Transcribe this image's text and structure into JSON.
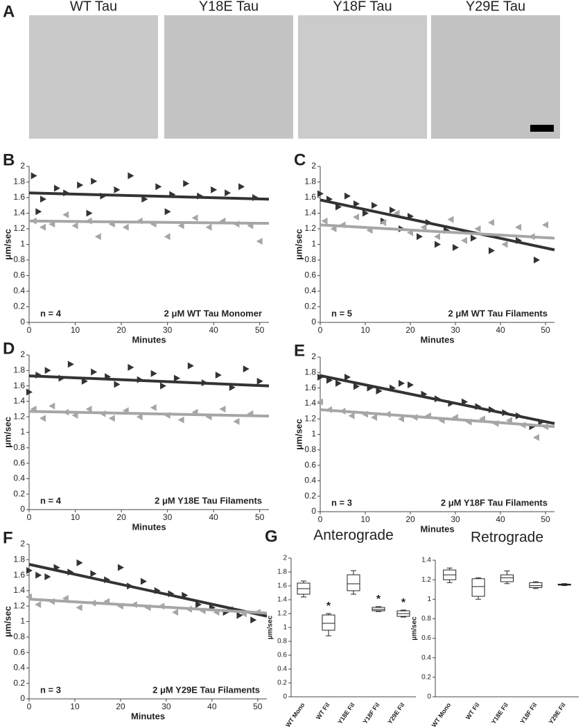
{
  "figure": {
    "panel_label": "A",
    "images": [
      "WT Tau",
      "Y18E Tau",
      "Y18F Tau",
      "Y29E Tau"
    ]
  },
  "chart_data": [
    {
      "type": "scatter",
      "panel_label": "B",
      "ylabel": "μm/sec",
      "xlabel": "Minutes",
      "annotation_left": "n = 4",
      "annotation_right": "2 μM WT Tau Monomer",
      "xlim": [
        0,
        52
      ],
      "xticks": [
        0,
        10,
        20,
        30,
        40,
        50
      ],
      "ylim": [
        0,
        2
      ],
      "yticks": [
        0,
        0.2,
        0.4,
        0.6,
        0.8,
        1,
        1.2,
        1.4,
        1.6,
        1.8,
        2
      ],
      "series": [
        {
          "color": "#333333",
          "marker": "right",
          "x": [
            1,
            2,
            3,
            6,
            8,
            11,
            13,
            14,
            16,
            19,
            22,
            25,
            28,
            30,
            31,
            34,
            37,
            40,
            43,
            46,
            49
          ],
          "values": [
            1.88,
            1.42,
            1.58,
            1.72,
            1.66,
            1.76,
            1.4,
            1.81,
            1.62,
            1.7,
            1.88,
            1.58,
            1.74,
            1.42,
            1.64,
            1.78,
            1.62,
            1.7,
            1.66,
            1.74,
            1.6
          ]
        },
        {
          "color": "#a6a6a6",
          "marker": "left",
          "x": [
            1,
            3,
            5,
            8,
            10,
            13,
            15,
            18,
            21,
            24,
            27,
            30,
            33,
            36,
            39,
            42,
            45,
            48,
            50
          ],
          "values": [
            1.3,
            1.22,
            1.26,
            1.38,
            1.24,
            1.3,
            1.1,
            1.26,
            1.22,
            1.3,
            1.26,
            1.1,
            1.24,
            1.34,
            1.22,
            1.3,
            1.26,
            1.24,
            1.04
          ]
        }
      ],
      "fits": [
        {
          "color": "#333333",
          "x": [
            0,
            52
          ],
          "values": [
            1.66,
            1.58
          ]
        },
        {
          "color": "#a6a6a6",
          "x": [
            0,
            52
          ],
          "values": [
            1.3,
            1.27
          ]
        }
      ]
    },
    {
      "type": "scatter",
      "panel_label": "C",
      "ylabel": "μm/sec",
      "xlabel": "Minutes",
      "annotation_left": "n = 5",
      "annotation_right": "2 μM WT Tau Filaments",
      "xlim": [
        0,
        52
      ],
      "xticks": [
        0,
        10,
        20,
        30,
        40,
        50
      ],
      "ylim": [
        0,
        2
      ],
      "yticks": [
        0,
        0.2,
        0.4,
        0.6,
        0.8,
        1,
        1.2,
        1.4,
        1.6,
        1.8,
        2
      ],
      "series": [
        {
          "color": "#333333",
          "marker": "right",
          "x": [
            0,
            2,
            4,
            6,
            8,
            10,
            12,
            14,
            16,
            18,
            20,
            22,
            24,
            26,
            28,
            30,
            34,
            38,
            44,
            48
          ],
          "values": [
            1.65,
            1.58,
            1.48,
            1.62,
            1.52,
            1.4,
            1.5,
            1.3,
            1.44,
            1.2,
            1.36,
            1.1,
            1.28,
            1.0,
            1.18,
            0.96,
            1.08,
            0.92,
            1.05,
            0.8
          ]
        },
        {
          "color": "#a6a6a6",
          "marker": "left",
          "x": [
            1,
            3,
            5,
            8,
            11,
            14,
            17,
            20,
            23,
            26,
            29,
            32,
            35,
            38,
            41,
            44,
            47,
            50
          ],
          "values": [
            1.3,
            1.2,
            1.25,
            1.35,
            1.18,
            1.28,
            1.4,
            1.15,
            1.22,
            1.1,
            1.32,
            1.05,
            1.2,
            1.28,
            1.0,
            1.22,
            1.1,
            1.25
          ]
        }
      ],
      "fits": [
        {
          "color": "#333333",
          "x": [
            0,
            52
          ],
          "values": [
            1.57,
            0.93
          ]
        },
        {
          "color": "#a6a6a6",
          "x": [
            0,
            52
          ],
          "values": [
            1.25,
            1.08
          ]
        }
      ]
    },
    {
      "type": "scatter",
      "panel_label": "D",
      "ylabel": "μm/sec",
      "xlabel": "Minutes",
      "annotation_left": "n = 4",
      "annotation_right": "2 μM Y18E Tau Filaments",
      "xlim": [
        0,
        52
      ],
      "xticks": [
        0,
        10,
        20,
        30,
        40,
        50
      ],
      "ylim": [
        0,
        2
      ],
      "yticks": [
        0,
        0.2,
        0.4,
        0.6,
        0.8,
        1,
        1.2,
        1.4,
        1.6,
        1.8,
        2
      ],
      "series": [
        {
          "color": "#333333",
          "marker": "right",
          "x": [
            0,
            2,
            4,
            7,
            9,
            12,
            14,
            17,
            19,
            22,
            24,
            27,
            29,
            32,
            35,
            38,
            41,
            44,
            47,
            50
          ],
          "values": [
            1.52,
            1.74,
            1.8,
            1.7,
            1.88,
            1.66,
            1.78,
            1.72,
            1.62,
            1.84,
            1.68,
            1.76,
            1.6,
            1.7,
            1.86,
            1.64,
            1.74,
            1.58,
            1.82,
            1.66
          ]
        },
        {
          "color": "#a6a6a6",
          "marker": "left",
          "x": [
            1,
            3,
            5,
            8,
            10,
            13,
            16,
            18,
            21,
            24,
            27,
            30,
            33,
            36,
            39,
            42,
            45,
            48
          ],
          "values": [
            1.3,
            1.18,
            1.34,
            1.26,
            1.22,
            1.3,
            1.24,
            1.18,
            1.28,
            1.2,
            1.32,
            1.22,
            1.16,
            1.26,
            1.2,
            1.3,
            1.14,
            1.24
          ]
        }
      ],
      "fits": [
        {
          "color": "#333333",
          "x": [
            0,
            52
          ],
          "values": [
            1.73,
            1.6
          ]
        },
        {
          "color": "#a6a6a6",
          "x": [
            0,
            52
          ],
          "values": [
            1.27,
            1.21
          ]
        }
      ]
    },
    {
      "type": "scatter",
      "panel_label": "E",
      "ylabel": "μm/sec",
      "xlabel": "Minutes",
      "annotation_left": "n = 3",
      "annotation_right": "2 μM Y18F Tau Filaments",
      "xlim": [
        0,
        52
      ],
      "xticks": [
        0,
        10,
        20,
        30,
        40,
        50
      ],
      "ylim": [
        0,
        2
      ],
      "yticks": [
        0,
        0.2,
        0.4,
        0.6,
        0.8,
        1,
        1.2,
        1.4,
        1.6,
        1.8,
        2
      ],
      "series": [
        {
          "color": "#333333",
          "marker": "right",
          "x": [
            0,
            2,
            4,
            6,
            8,
            11,
            13,
            16,
            18,
            20,
            23,
            26,
            29,
            32,
            35,
            38,
            41,
            44,
            47,
            49
          ],
          "values": [
            1.74,
            1.7,
            1.66,
            1.74,
            1.62,
            1.6,
            1.56,
            1.6,
            1.66,
            1.64,
            1.52,
            1.46,
            1.4,
            1.42,
            1.36,
            1.32,
            1.28,
            1.24,
            1.1,
            1.16
          ]
        },
        {
          "color": "#a6a6a6",
          "marker": "left",
          "x": [
            0,
            2,
            5,
            7,
            10,
            12,
            15,
            18,
            21,
            24,
            27,
            30,
            33,
            36,
            39,
            42,
            45,
            48,
            50
          ],
          "values": [
            1.42,
            1.32,
            1.3,
            1.24,
            1.26,
            1.22,
            1.26,
            1.2,
            1.22,
            1.24,
            1.18,
            1.22,
            1.16,
            1.2,
            1.14,
            1.18,
            1.12,
            0.96,
            1.1
          ]
        }
      ],
      "fits": [
        {
          "color": "#333333",
          "x": [
            0,
            52
          ],
          "values": [
            1.76,
            1.14
          ]
        },
        {
          "color": "#a6a6a6",
          "x": [
            0,
            52
          ],
          "values": [
            1.32,
            1.1
          ]
        }
      ]
    },
    {
      "type": "scatter",
      "panel_label": "F",
      "ylabel": "μm/sec",
      "xlabel": "Minutes",
      "annotation_left": "n = 3",
      "annotation_right": "2 μM Y29E Tau Filaments",
      "xlim": [
        0,
        52
      ],
      "xticks": [
        0,
        10,
        20,
        30,
        40,
        50
      ],
      "ylim": [
        0,
        2
      ],
      "yticks": [
        0,
        0.2,
        0.4,
        0.6,
        0.8,
        1,
        1.2,
        1.4,
        1.6,
        1.8,
        2
      ],
      "series": [
        {
          "color": "#333333",
          "marker": "right",
          "x": [
            0,
            2,
            4,
            6,
            9,
            11,
            14,
            17,
            20,
            22,
            25,
            28,
            31,
            34,
            37,
            40,
            43,
            46,
            49
          ],
          "values": [
            1.66,
            1.6,
            1.58,
            1.7,
            1.64,
            1.76,
            1.62,
            1.54,
            1.7,
            1.46,
            1.52,
            1.4,
            1.36,
            1.34,
            1.22,
            1.18,
            1.12,
            1.08,
            1.02
          ]
        },
        {
          "color": "#a6a6a6",
          "marker": "left",
          "x": [
            0,
            2,
            5,
            8,
            11,
            14,
            17,
            20,
            23,
            26,
            29,
            32,
            35,
            38,
            41,
            44,
            47,
            50
          ],
          "values": [
            1.32,
            1.22,
            1.26,
            1.3,
            1.18,
            1.24,
            1.26,
            1.2,
            1.22,
            1.18,
            1.2,
            1.12,
            1.16,
            1.14,
            1.12,
            1.16,
            1.1,
            1.12
          ]
        }
      ],
      "fits": [
        {
          "color": "#333333",
          "x": [
            0,
            52
          ],
          "values": [
            1.74,
            1.07
          ]
        },
        {
          "color": "#a6a6a6",
          "x": [
            0,
            52
          ],
          "values": [
            1.29,
            1.11
          ]
        }
      ]
    },
    {
      "type": "box",
      "panel_label": "G",
      "title": "Anterograde",
      "ylabel": "μm/sec",
      "categories": [
        "WT Mono",
        "WT Fil",
        "Y18E Fil",
        "Y18F Fil",
        "Y29E Fil"
      ],
      "ylim": [
        0,
        2
      ],
      "yticks": [
        0,
        0.2,
        0.4,
        0.6,
        0.8,
        1,
        1.2,
        1.4,
        1.6,
        1.8,
        2
      ],
      "boxes": [
        {
          "min": 1.44,
          "q1": 1.48,
          "median": 1.56,
          "q3": 1.64,
          "max": 1.67
        },
        {
          "min": 0.88,
          "q1": 0.96,
          "median": 1.06,
          "q3": 1.18,
          "max": 1.2
        },
        {
          "min": 1.48,
          "q1": 1.53,
          "median": 1.63,
          "q3": 1.76,
          "max": 1.82
        },
        {
          "min": 1.23,
          "q1": 1.24,
          "median": 1.26,
          "q3": 1.29,
          "max": 1.3
        },
        {
          "min": 1.15,
          "q1": 1.16,
          "median": 1.2,
          "q3": 1.24,
          "max": 1.25
        }
      ],
      "significance": [
        null,
        "*",
        null,
        "*",
        "*"
      ]
    },
    {
      "type": "box",
      "title": "Retrograde",
      "ylabel": "μm/sec",
      "categories": [
        "WT Mono",
        "WT Fil",
        "Y18E Fil",
        "Y18F Fil",
        "Y29E Fil"
      ],
      "ylim": [
        0,
        1.4
      ],
      "yticks": [
        0,
        0.2,
        0.4,
        0.6,
        0.8,
        1,
        1.2,
        1.4
      ],
      "boxes": [
        {
          "min": 1.17,
          "q1": 1.2,
          "median": 1.25,
          "q3": 1.3,
          "max": 1.32
        },
        {
          "min": 1.0,
          "q1": 1.03,
          "median": 1.13,
          "q3": 1.21,
          "max": 1.22
        },
        {
          "min": 1.16,
          "q1": 1.18,
          "median": 1.22,
          "q3": 1.25,
          "max": 1.29
        },
        {
          "min": 1.11,
          "q1": 1.12,
          "median": 1.14,
          "q3": 1.17,
          "max": 1.18
        },
        {
          "min": 1.14,
          "q1": 1.145,
          "median": 1.15,
          "q3": 1.155,
          "max": 1.16
        }
      ]
    }
  ]
}
